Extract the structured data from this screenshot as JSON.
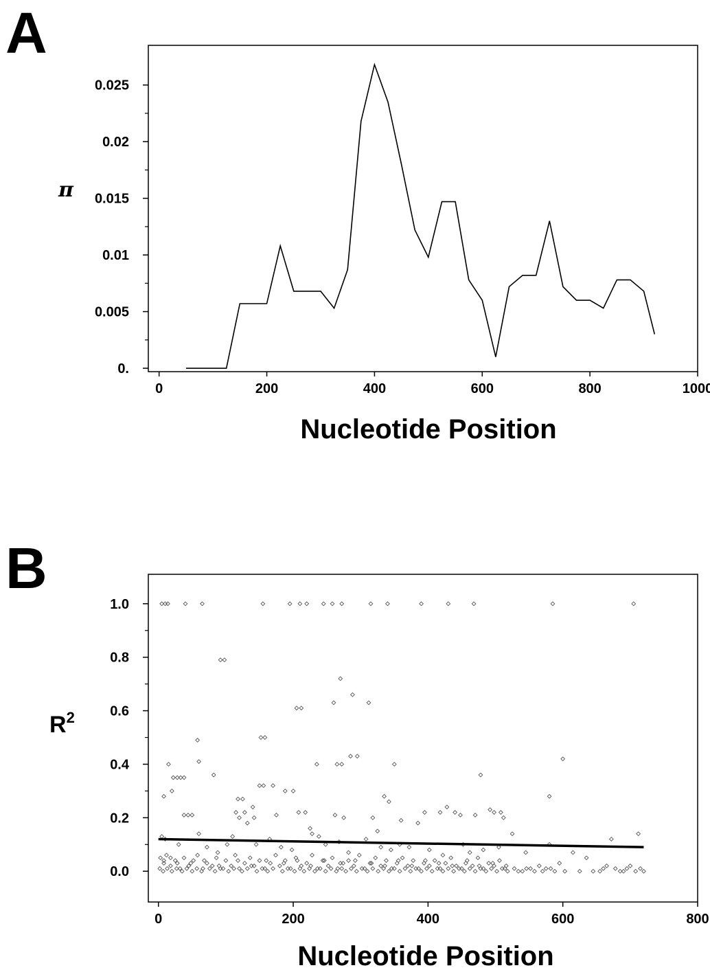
{
  "panels": {
    "a_label": "A",
    "b_label": "B"
  },
  "chart_data": [
    {
      "type": "line",
      "panel": "A",
      "title": "",
      "xlabel": "Nucleotide Position",
      "ylabel": "π",
      "xlim": [
        -20,
        1000
      ],
      "ylim": [
        -0.0003,
        0.0285
      ],
      "xticks": [
        0,
        200,
        400,
        600,
        800,
        1000
      ],
      "xtick_labels": [
        "0",
        "200",
        "400",
        "600",
        "800",
        "1000"
      ],
      "yticks": [
        0,
        0.005,
        0.01,
        0.015,
        0.02,
        0.025
      ],
      "ytick_labels": [
        "0.",
        "0.005",
        "0.01",
        "0.015",
        "0.02",
        "0.025"
      ],
      "grid": false,
      "series": [
        {
          "color": "#000000",
          "x": [
            50,
            75,
            100,
            125,
            150,
            175,
            200,
            225,
            250,
            275,
            300,
            325,
            350,
            375,
            400,
            425,
            450,
            475,
            500,
            525,
            550,
            575,
            600,
            625,
            650,
            675,
            700,
            725,
            750,
            775,
            800,
            825,
            850,
            875,
            900,
            920
          ],
          "y": [
            0,
            0,
            0,
            0,
            0.0057,
            0.0057,
            0.0057,
            0.0108,
            0.0068,
            0.0068,
            0.0068,
            0.0053,
            0.0087,
            0.0218,
            0.0268,
            0.0235,
            0.018,
            0.0122,
            0.0098,
            0.0147,
            0.0147,
            0.0078,
            0.006,
            0.001,
            0.0072,
            0.0082,
            0.0082,
            0.013,
            0.0072,
            0.006,
            0.006,
            0.0053,
            0.0078,
            0.0078,
            0.0068,
            0.003
          ]
        }
      ]
    },
    {
      "type": "scatter",
      "panel": "B",
      "title": "",
      "xlabel": "Nucleotide Position",
      "ylabel": "R",
      "ylabel_sup": "2",
      "xlim": [
        -15,
        800
      ],
      "ylim": [
        -0.115,
        1.11
      ],
      "xticks": [
        0,
        200,
        400,
        600,
        800
      ],
      "xtick_labels": [
        "0",
        "200",
        "400",
        "600",
        "800"
      ],
      "yticks": [
        0.0,
        0.2,
        0.4,
        0.6,
        0.8,
        1.0
      ],
      "ytick_labels": [
        "0.0",
        "0.2",
        "0.4",
        "0.6",
        "0.8",
        "1.0"
      ],
      "grid": false,
      "trend_line": {
        "x": [
          0,
          720
        ],
        "y": [
          0.12,
          0.09
        ]
      },
      "points": [
        [
          5,
          1.0
        ],
        [
          10,
          1.0
        ],
        [
          14,
          1.0
        ],
        [
          40,
          1.0
        ],
        [
          65,
          1.0
        ],
        [
          155,
          1.0
        ],
        [
          195,
          1.0
        ],
        [
          210,
          1.0
        ],
        [
          220,
          1.0
        ],
        [
          245,
          1.0
        ],
        [
          258,
          1.0
        ],
        [
          272,
          1.0
        ],
        [
          315,
          1.0
        ],
        [
          340,
          1.0
        ],
        [
          390,
          1.0
        ],
        [
          430,
          1.0
        ],
        [
          468,
          1.0
        ],
        [
          585,
          1.0
        ],
        [
          705,
          1.0
        ],
        [
          92,
          0.79
        ],
        [
          98,
          0.79
        ],
        [
          260,
          0.63
        ],
        [
          270,
          0.72
        ],
        [
          288,
          0.66
        ],
        [
          312,
          0.63
        ],
        [
          205,
          0.61
        ],
        [
          212,
          0.61
        ],
        [
          58,
          0.49
        ],
        [
          152,
          0.5
        ],
        [
          158,
          0.5
        ],
        [
          60,
          0.41
        ],
        [
          15,
          0.4
        ],
        [
          235,
          0.4
        ],
        [
          265,
          0.4
        ],
        [
          272,
          0.4
        ],
        [
          285,
          0.43
        ],
        [
          295,
          0.43
        ],
        [
          350,
          0.4
        ],
        [
          600,
          0.42
        ],
        [
          8,
          0.28
        ],
        [
          20,
          0.3
        ],
        [
          22,
          0.35
        ],
        [
          28,
          0.35
        ],
        [
          33,
          0.35
        ],
        [
          38,
          0.35
        ],
        [
          82,
          0.36
        ],
        [
          150,
          0.32
        ],
        [
          156,
          0.32
        ],
        [
          170,
          0.32
        ],
        [
          188,
          0.3
        ],
        [
          200,
          0.3
        ],
        [
          478,
          0.36
        ],
        [
          580,
          0.28
        ],
        [
          38,
          0.21
        ],
        [
          44,
          0.21
        ],
        [
          50,
          0.21
        ],
        [
          118,
          0.27
        ],
        [
          125,
          0.27
        ],
        [
          115,
          0.22
        ],
        [
          120,
          0.2
        ],
        [
          128,
          0.22
        ],
        [
          132,
          0.18
        ],
        [
          140,
          0.24
        ],
        [
          142,
          0.2
        ],
        [
          175,
          0.21
        ],
        [
          208,
          0.22
        ],
        [
          218,
          0.22
        ],
        [
          225,
          0.16
        ],
        [
          262,
          0.21
        ],
        [
          275,
          0.2
        ],
        [
          318,
          0.2
        ],
        [
          325,
          0.15
        ],
        [
          335,
          0.28
        ],
        [
          342,
          0.26
        ],
        [
          360,
          0.19
        ],
        [
          385,
          0.18
        ],
        [
          395,
          0.22
        ],
        [
          418,
          0.22
        ],
        [
          428,
          0.24
        ],
        [
          440,
          0.22
        ],
        [
          448,
          0.21
        ],
        [
          470,
          0.21
        ],
        [
          492,
          0.23
        ],
        [
          498,
          0.22
        ],
        [
          508,
          0.22
        ],
        [
          512,
          0.2
        ],
        [
          525,
          0.14
        ],
        [
          712,
          0.14
        ],
        [
          5,
          0.13
        ],
        [
          10,
          0.12
        ],
        [
          30,
          0.1
        ],
        [
          60,
          0.14
        ],
        [
          72,
          0.09
        ],
        [
          88,
          0.07
        ],
        [
          102,
          0.1
        ],
        [
          110,
          0.13
        ],
        [
          145,
          0.1
        ],
        [
          165,
          0.12
        ],
        [
          182,
          0.09
        ],
        [
          198,
          0.08
        ],
        [
          228,
          0.14
        ],
        [
          238,
          0.13
        ],
        [
          248,
          0.1
        ],
        [
          268,
          0.11
        ],
        [
          282,
          0.07
        ],
        [
          308,
          0.12
        ],
        [
          330,
          0.09
        ],
        [
          345,
          0.08
        ],
        [
          358,
          0.1
        ],
        [
          372,
          0.09
        ],
        [
          402,
          0.08
        ],
        [
          422,
          0.06
        ],
        [
          452,
          0.1
        ],
        [
          462,
          0.07
        ],
        [
          482,
          0.08
        ],
        [
          505,
          0.09
        ],
        [
          545,
          0.07
        ],
        [
          580,
          0.1
        ],
        [
          615,
          0.07
        ],
        [
          672,
          0.12
        ],
        [
          3,
          0.05
        ],
        [
          8,
          0.03
        ],
        [
          12,
          0.06
        ],
        [
          18,
          0.02
        ],
        [
          25,
          0.04
        ],
        [
          32,
          0.01
        ],
        [
          38,
          0.05
        ],
        [
          45,
          0.02
        ],
        [
          52,
          0.04
        ],
        [
          58,
          0.06
        ],
        [
          66,
          0.01
        ],
        [
          72,
          0.03
        ],
        [
          80,
          0.02
        ],
        [
          86,
          0.05
        ],
        [
          92,
          0.01
        ],
        [
          100,
          0.04
        ],
        [
          108,
          0.02
        ],
        [
          114,
          0.06
        ],
        [
          120,
          0.01
        ],
        [
          128,
          0.03
        ],
        [
          136,
          0.05
        ],
        [
          142,
          0.02
        ],
        [
          150,
          0.04
        ],
        [
          158,
          0.01
        ],
        [
          166,
          0.03
        ],
        [
          174,
          0.06
        ],
        [
          180,
          0.02
        ],
        [
          188,
          0.04
        ],
        [
          196,
          0.01
        ],
        [
          204,
          0.05
        ],
        [
          212,
          0.02
        ],
        [
          220,
          0.03
        ],
        [
          228,
          0.06
        ],
        [
          236,
          0.01
        ],
        [
          244,
          0.04
        ],
        [
          252,
          0.02
        ],
        [
          258,
          0.05
        ],
        [
          266,
          0.01
        ],
        [
          274,
          0.03
        ],
        [
          282,
          0.04
        ],
        [
          290,
          0.02
        ],
        [
          298,
          0.06
        ],
        [
          306,
          0.01
        ],
        [
          314,
          0.03
        ],
        [
          322,
          0.05
        ],
        [
          330,
          0.02
        ],
        [
          338,
          0.04
        ],
        [
          346,
          0.01
        ],
        [
          354,
          0.03
        ],
        [
          362,
          0.05
        ],
        [
          370,
          0.02
        ],
        [
          378,
          0.04
        ],
        [
          386,
          0.01
        ],
        [
          394,
          0.03
        ],
        [
          402,
          0.02
        ],
        [
          410,
          0.04
        ],
        [
          418,
          0.01
        ],
        [
          426,
          0.03
        ],
        [
          434,
          0.05
        ],
        [
          442,
          0.02
        ],
        [
          450,
          0.01
        ],
        [
          458,
          0.04
        ],
        [
          466,
          0.02
        ],
        [
          474,
          0.05
        ],
        [
          482,
          0.01
        ],
        [
          490,
          0.03
        ],
        [
          498,
          0.02
        ],
        [
          506,
          0.04
        ],
        [
          514,
          0.01
        ],
        [
          528,
          0.01
        ],
        [
          540,
          0.0
        ],
        [
          552,
          0.01
        ],
        [
          565,
          0.02
        ],
        [
          575,
          0.01
        ],
        [
          588,
          0.0
        ],
        [
          595,
          0.03
        ],
        [
          635,
          0.05
        ],
        [
          655,
          0.0
        ],
        [
          665,
          0.02
        ],
        [
          678,
          0.01
        ],
        [
          690,
          0.0
        ],
        [
          700,
          0.02
        ],
        [
          708,
          0.0
        ],
        [
          715,
          0.01
        ],
        [
          2,
          0.01
        ],
        [
          7,
          0.0
        ],
        [
          13,
          0.01
        ],
        [
          20,
          0.0
        ],
        [
          27,
          0.01
        ],
        [
          35,
          0.0
        ],
        [
          42,
          0.01
        ],
        [
          50,
          0.0
        ],
        [
          57,
          0.01
        ],
        [
          64,
          0.0
        ],
        [
          76,
          0.01
        ],
        [
          84,
          0.0
        ],
        [
          96,
          0.01
        ],
        [
          104,
          0.0
        ],
        [
          112,
          0.01
        ],
        [
          124,
          0.0
        ],
        [
          132,
          0.01
        ],
        [
          146,
          0.0
        ],
        [
          154,
          0.01
        ],
        [
          162,
          0.0
        ],
        [
          170,
          0.01
        ],
        [
          184,
          0.0
        ],
        [
          192,
          0.01
        ],
        [
          202,
          0.0
        ],
        [
          210,
          0.01
        ],
        [
          216,
          0.0
        ],
        [
          224,
          0.01
        ],
        [
          232,
          0.0
        ],
        [
          240,
          0.01
        ],
        [
          248,
          0.0
        ],
        [
          256,
          0.01
        ],
        [
          264,
          0.0
        ],
        [
          272,
          0.01
        ],
        [
          278,
          0.0
        ],
        [
          286,
          0.01
        ],
        [
          294,
          0.0
        ],
        [
          302,
          0.01
        ],
        [
          310,
          0.0
        ],
        [
          318,
          0.01
        ],
        [
          326,
          0.0
        ],
        [
          334,
          0.01
        ],
        [
          342,
          0.0
        ],
        [
          350,
          0.01
        ],
        [
          358,
          0.0
        ],
        [
          366,
          0.01
        ],
        [
          374,
          0.0
        ],
        [
          382,
          0.01
        ],
        [
          390,
          0.0
        ],
        [
          398,
          0.01
        ],
        [
          406,
          0.0
        ],
        [
          414,
          0.01
        ],
        [
          422,
          0.0
        ],
        [
          430,
          0.01
        ],
        [
          438,
          0.0
        ],
        [
          446,
          0.01
        ],
        [
          454,
          0.0
        ],
        [
          462,
          0.01
        ],
        [
          470,
          0.0
        ],
        [
          478,
          0.01
        ],
        [
          486,
          0.0
        ],
        [
          494,
          0.01
        ],
        [
          502,
          0.0
        ],
        [
          510,
          0.01
        ],
        [
          518,
          0.0
        ],
        [
          534,
          0.0
        ],
        [
          546,
          0.01
        ],
        [
          558,
          0.0
        ],
        [
          570,
          0.0
        ],
        [
          582,
          0.01
        ],
        [
          603,
          0.0
        ],
        [
          625,
          0.0
        ],
        [
          645,
          0.0
        ],
        [
          660,
          0.01
        ],
        [
          685,
          0.0
        ],
        [
          695,
          0.01
        ],
        [
          720,
          0.0
        ],
        [
          8,
          0.04
        ],
        [
          18,
          0.05
        ],
        [
          28,
          0.03
        ],
        [
          48,
          0.03
        ],
        [
          68,
          0.04
        ],
        [
          90,
          0.02
        ],
        [
          118,
          0.04
        ],
        [
          138,
          0.02
        ],
        [
          160,
          0.04
        ],
        [
          186,
          0.03
        ],
        [
          206,
          0.04
        ],
        [
          226,
          0.02
        ],
        [
          246,
          0.04
        ],
        [
          270,
          0.03
        ],
        [
          292,
          0.04
        ],
        [
          316,
          0.03
        ],
        [
          336,
          0.02
        ],
        [
          356,
          0.04
        ],
        [
          376,
          0.02
        ],
        [
          396,
          0.04
        ],
        [
          416,
          0.03
        ],
        [
          436,
          0.02
        ],
        [
          456,
          0.03
        ],
        [
          476,
          0.02
        ],
        [
          496,
          0.03
        ],
        [
          516,
          0.02
        ]
      ]
    }
  ]
}
